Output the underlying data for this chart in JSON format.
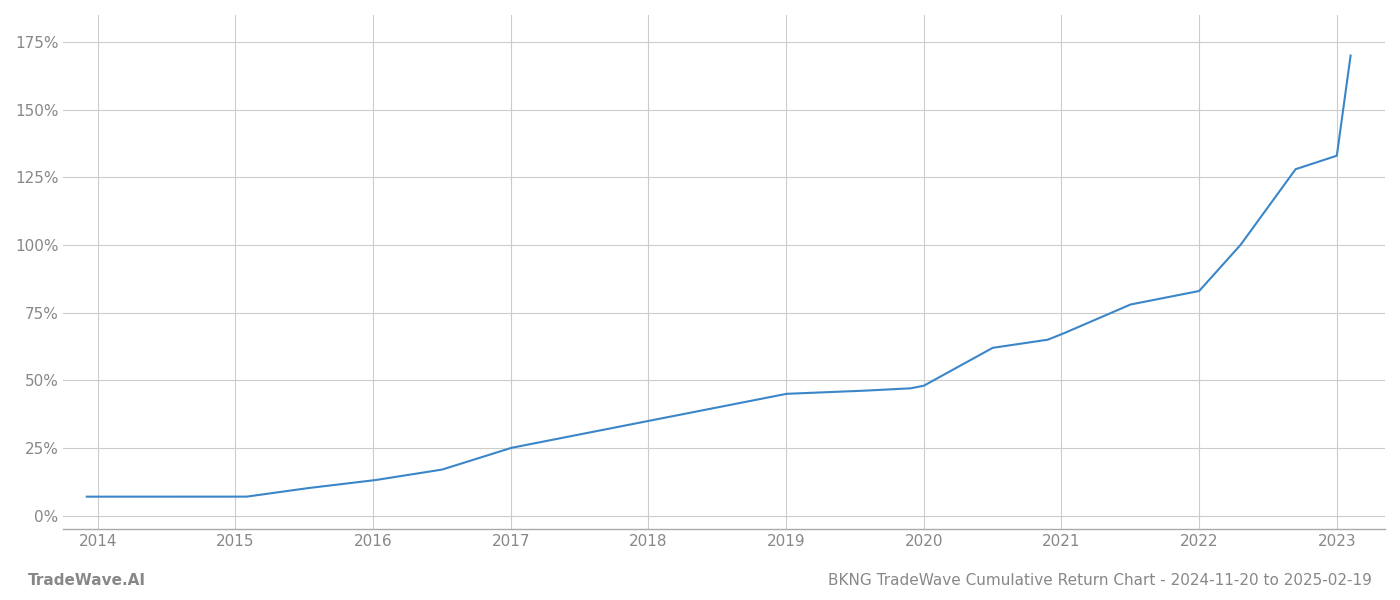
{
  "title": "BKNG TradeWave Cumulative Return Chart - 2024-11-20 to 2025-02-19",
  "watermark": "TradeWave.AI",
  "line_color": "#3a86c8",
  "background_color": "#ffffff",
  "grid_color": "#cccccc",
  "key_x": [
    2013.92,
    2014.0,
    2014.5,
    2015.0,
    2015.08,
    2015.5,
    2016.0,
    2016.5,
    2017.0,
    2017.5,
    2018.0,
    2018.5,
    2019.0,
    2019.5,
    2019.9,
    2020.0,
    2020.5,
    2020.9,
    2021.0,
    2021.5,
    2021.9,
    2022.0,
    2022.3,
    2022.7,
    2023.0,
    2023.1
  ],
  "key_y": [
    7,
    7,
    7,
    7,
    7,
    10,
    13,
    17,
    25,
    30,
    35,
    40,
    45,
    46,
    47,
    48,
    62,
    65,
    67,
    78,
    82,
    83,
    100,
    128,
    133,
    170
  ],
  "yticks": [
    0,
    25,
    50,
    75,
    100,
    125,
    150,
    175
  ],
  "ytick_labels": [
    "0%",
    "25%",
    "50%",
    "75%",
    "100%",
    "125%",
    "150%",
    "175%"
  ],
  "xticks": [
    2014,
    2015,
    2016,
    2017,
    2018,
    2019,
    2020,
    2021,
    2022,
    2023
  ],
  "xlim": [
    2013.75,
    2023.35
  ],
  "ylim": [
    -5,
    185
  ],
  "xlabel_color": "#888888",
  "ylabel_color": "#888888",
  "title_color": "#888888",
  "watermark_color": "#888888",
  "line_width": 1.5,
  "title_fontsize": 11,
  "tick_fontsize": 11,
  "watermark_fontsize": 11
}
